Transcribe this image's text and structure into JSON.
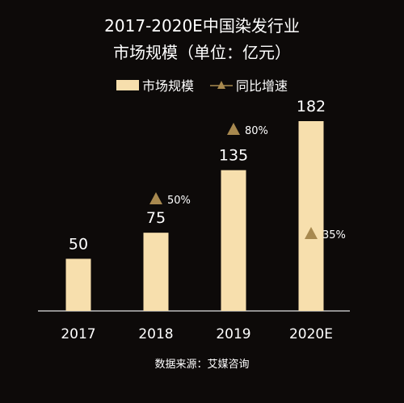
{
  "chart_data": {
    "type": "bar",
    "title_line1": "2017-2020E中国染发行业",
    "title_line2": "市场规模（单位：亿元）",
    "categories": [
      "2017",
      "2018",
      "2019",
      "2020E"
    ],
    "series": [
      {
        "name": "市场规模",
        "values": [
          50,
          75,
          135,
          182
        ],
        "labels": [
          "50",
          "75",
          "135",
          "182"
        ]
      },
      {
        "name": "同比增速",
        "values": [
          null,
          50,
          80,
          35
        ],
        "labels": [
          "",
          "50%",
          "80%",
          "35%"
        ]
      }
    ],
    "ylim": [
      0,
      200
    ],
    "grid": false,
    "legend_position": "top-center",
    "colors": {
      "bar": "#f7dfad",
      "growth_marker": "#a8894f",
      "axis": "#bdbdbd",
      "background": "#0d0a09"
    }
  },
  "source": "数据来源：艾媒咨询"
}
